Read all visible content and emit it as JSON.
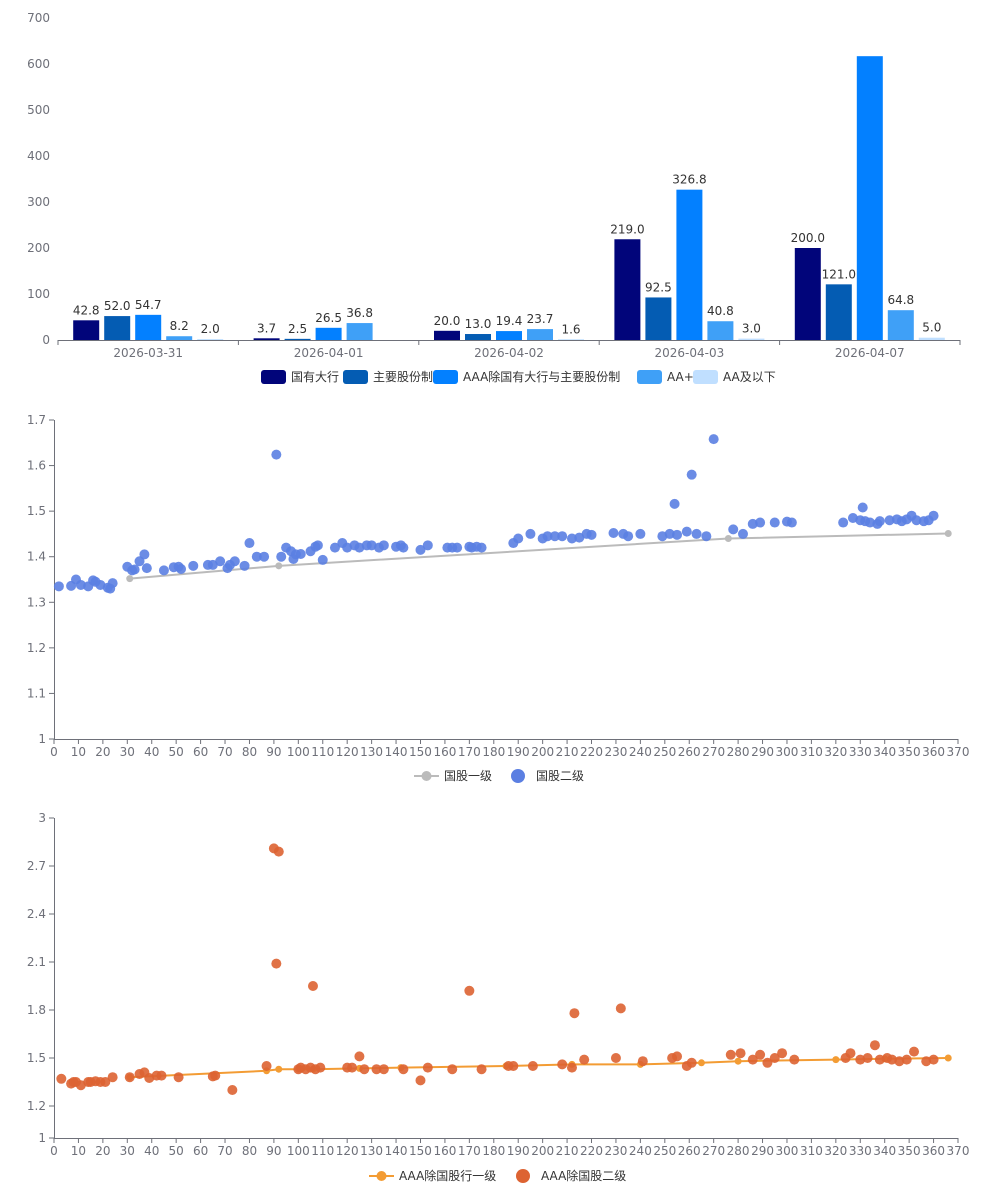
{
  "colors": {
    "series": [
      "#01057a",
      "#045cb3",
      "#0380ff",
      "#3fa0f7",
      "#c0dfff"
    ],
    "gov_tier1": "#bbbbbb",
    "gov_tier2": "#5b7fe2",
    "aaa_tier1": "#f39c34",
    "aaa_tier2": "#dd6332",
    "axis": "#6e7079"
  },
  "chart_data": [
    {
      "type": "bar",
      "categories": [
        "2026-03-31",
        "2026-04-01",
        "2026-04-02",
        "2026-04-03",
        "2026-04-07"
      ],
      "ylim": [
        0,
        700
      ],
      "yticks": [
        "0",
        "100",
        "200",
        "300",
        "400",
        "500",
        "600",
        "700"
      ],
      "series": [
        {
          "name": "国有大行",
          "values": [
            42.8,
            3.7,
            20.0,
            219.0,
            200.0
          ],
          "labels": [
            "42.8",
            "3.7",
            "20.0",
            "219.0",
            "200.0"
          ]
        },
        {
          "name": "主要股份制",
          "values": [
            52.0,
            2.5,
            13.0,
            92.5,
            121.0
          ],
          "labels": [
            "52.0",
            "2.5",
            "13.0",
            "92.5",
            "121.0"
          ]
        },
        {
          "name": "AAA除国有大行与主要股份制",
          "values": [
            54.7,
            26.5,
            19.4,
            326.8,
            617.0
          ],
          "labels": [
            "54.7",
            "26.5",
            "19.4",
            "326.8",
            ""
          ]
        },
        {
          "name": "AA+",
          "values": [
            8.2,
            36.8,
            23.7,
            40.8,
            64.8
          ],
          "labels": [
            "8.2",
            "36.8",
            "23.7",
            "40.8",
            "64.8"
          ]
        },
        {
          "name": "AA及以下",
          "values": [
            2.0,
            0,
            1.6,
            3.0,
            5.0
          ],
          "labels": [
            "2.0",
            "",
            "1.6",
            "3.0",
            "5.0"
          ]
        }
      ]
    },
    {
      "type": "scatter",
      "xlim": [
        0,
        370
      ],
      "ylim": [
        1,
        1.7
      ],
      "xticks": [
        "0",
        "10",
        "20",
        "30",
        "40",
        "50",
        "60",
        "70",
        "80",
        "90",
        "100",
        "110",
        "120",
        "130",
        "140",
        "150",
        "160",
        "170",
        "180",
        "190",
        "200",
        "210",
        "220",
        "230",
        "240",
        "250",
        "260",
        "270",
        "280",
        "290",
        "300",
        "310",
        "320",
        "330",
        "340",
        "350",
        "360",
        "370"
      ],
      "yticks": [
        "1",
        "1.1",
        "1.2",
        "1.3",
        "1.4",
        "1.5",
        "1.6",
        "1.7"
      ],
      "series": [
        {
          "name": "国股一级",
          "kind": "line",
          "x": [
            31,
            92,
            276,
            366
          ],
          "y": [
            1.352,
            1.38,
            1.44,
            1.451
          ]
        },
        {
          "name": "国股二级",
          "kind": "scatter",
          "x": [
            2,
            7,
            9,
            11,
            14,
            16,
            17,
            19,
            22,
            23,
            24,
            30,
            32,
            33,
            35,
            37,
            38,
            45,
            49,
            51,
            52,
            57,
            63,
            65,
            68,
            71,
            72,
            74,
            78,
            80,
            83,
            86,
            91,
            93,
            95,
            97,
            98,
            99,
            101,
            105,
            107,
            108,
            110,
            115,
            118,
            120,
            123,
            125,
            128,
            130,
            133,
            135,
            140,
            142,
            143,
            150,
            153,
            161,
            163,
            165,
            170,
            171,
            173,
            175,
            188,
            190,
            195,
            200,
            202,
            205,
            208,
            212,
            215,
            218,
            220,
            229,
            233,
            235,
            240,
            249,
            252,
            254,
            255,
            259,
            261,
            263,
            267,
            270,
            278,
            282,
            286,
            289,
            295,
            300,
            302,
            323,
            327,
            330,
            331,
            332,
            334,
            337,
            338,
            342,
            345,
            347,
            349,
            351,
            353,
            356,
            358,
            360
          ],
          "y": [
            1.335,
            1.336,
            1.35,
            1.338,
            1.335,
            1.348,
            1.345,
            1.338,
            1.332,
            1.33,
            1.342,
            1.378,
            1.37,
            1.372,
            1.39,
            1.405,
            1.375,
            1.37,
            1.377,
            1.378,
            1.373,
            1.38,
            1.382,
            1.382,
            1.39,
            1.375,
            1.382,
            1.39,
            1.38,
            1.43,
            1.4,
            1.4,
            1.624,
            1.4,
            1.42,
            1.412,
            1.395,
            1.405,
            1.406,
            1.412,
            1.422,
            1.425,
            1.393,
            1.42,
            1.43,
            1.42,
            1.425,
            1.42,
            1.425,
            1.425,
            1.42,
            1.425,
            1.422,
            1.425,
            1.42,
            1.415,
            1.425,
            1.42,
            1.42,
            1.42,
            1.422,
            1.42,
            1.422,
            1.42,
            1.43,
            1.44,
            1.45,
            1.44,
            1.445,
            1.445,
            1.445,
            1.44,
            1.442,
            1.45,
            1.448,
            1.452,
            1.45,
            1.445,
            1.45,
            1.445,
            1.45,
            1.516,
            1.448,
            1.455,
            1.58,
            1.45,
            1.445,
            1.658,
            1.46,
            1.45,
            1.472,
            1.475,
            1.475,
            1.477,
            1.475,
            1.475,
            1.485,
            1.48,
            1.508,
            1.478,
            1.475,
            1.472,
            1.478,
            1.48,
            1.482,
            1.478,
            1.482,
            1.49,
            1.48,
            1.478,
            1.48,
            1.49
          ]
        }
      ]
    },
    {
      "type": "scatter",
      "xlim": [
        0,
        370
      ],
      "ylim": [
        1,
        3
      ],
      "xticks": [
        "0",
        "10",
        "20",
        "30",
        "40",
        "50",
        "60",
        "70",
        "80",
        "90",
        "100",
        "110",
        "120",
        "130",
        "140",
        "150",
        "160",
        "170",
        "180",
        "190",
        "200",
        "210",
        "220",
        "230",
        "240",
        "250",
        "260",
        "270",
        "280",
        "290",
        "300",
        "310",
        "320",
        "330",
        "340",
        "350",
        "360",
        "370"
      ],
      "yticks": [
        "1",
        "1.2",
        "1.5",
        "1.8",
        "2.1",
        "2.4",
        "2.7",
        "3"
      ],
      "series": [
        {
          "name": "AAA除国股行一级",
          "kind": "line",
          "x": [
            31,
            87,
            92,
            100,
            106,
            125,
            142,
            185,
            212,
            240,
            265,
            280,
            320,
            340,
            366
          ],
          "y": [
            1.38,
            1.42,
            1.43,
            1.43,
            1.43,
            1.435,
            1.44,
            1.45,
            1.46,
            1.46,
            1.47,
            1.48,
            1.49,
            1.495,
            1.5
          ]
        },
        {
          "name": "AAA除国股二级",
          "kind": "scatter",
          "x": [
            3,
            7,
            8,
            9,
            11,
            14,
            15,
            17,
            19,
            21,
            24,
            31,
            35,
            37,
            39,
            42,
            44,
            51,
            65,
            66,
            73,
            87,
            90,
            92,
            91,
            100,
            101,
            103,
            105,
            106,
            107,
            109,
            120,
            122,
            125,
            127,
            132,
            135,
            143,
            150,
            153,
            163,
            170,
            175,
            186,
            188,
            196,
            208,
            212,
            213,
            217,
            230,
            232,
            241,
            253,
            255,
            259,
            261,
            277,
            281,
            286,
            289,
            292,
            295,
            298,
            303,
            324,
            326,
            330,
            333,
            336,
            338,
            341,
            343,
            346,
            349,
            352,
            357,
            360
          ],
          "y": [
            1.37,
            1.34,
            1.35,
            1.35,
            1.33,
            1.35,
            1.35,
            1.355,
            1.35,
            1.35,
            1.38,
            1.38,
            1.4,
            1.41,
            1.375,
            1.39,
            1.39,
            1.38,
            1.385,
            1.39,
            1.3,
            1.45,
            2.81,
            2.79,
            2.09,
            1.43,
            1.44,
            1.43,
            1.44,
            1.95,
            1.43,
            1.44,
            1.44,
            1.44,
            1.51,
            1.43,
            1.43,
            1.43,
            1.43,
            1.36,
            1.44,
            1.43,
            1.92,
            1.43,
            1.45,
            1.45,
            1.45,
            1.46,
            1.44,
            1.78,
            1.49,
            1.5,
            1.81,
            1.48,
            1.5,
            1.51,
            1.45,
            1.47,
            1.52,
            1.53,
            1.49,
            1.52,
            1.47,
            1.5,
            1.53,
            1.49,
            1.5,
            1.53,
            1.49,
            1.5,
            1.58,
            1.49,
            1.5,
            1.49,
            1.48,
            1.49,
            1.54,
            1.48,
            1.49
          ]
        }
      ]
    }
  ]
}
